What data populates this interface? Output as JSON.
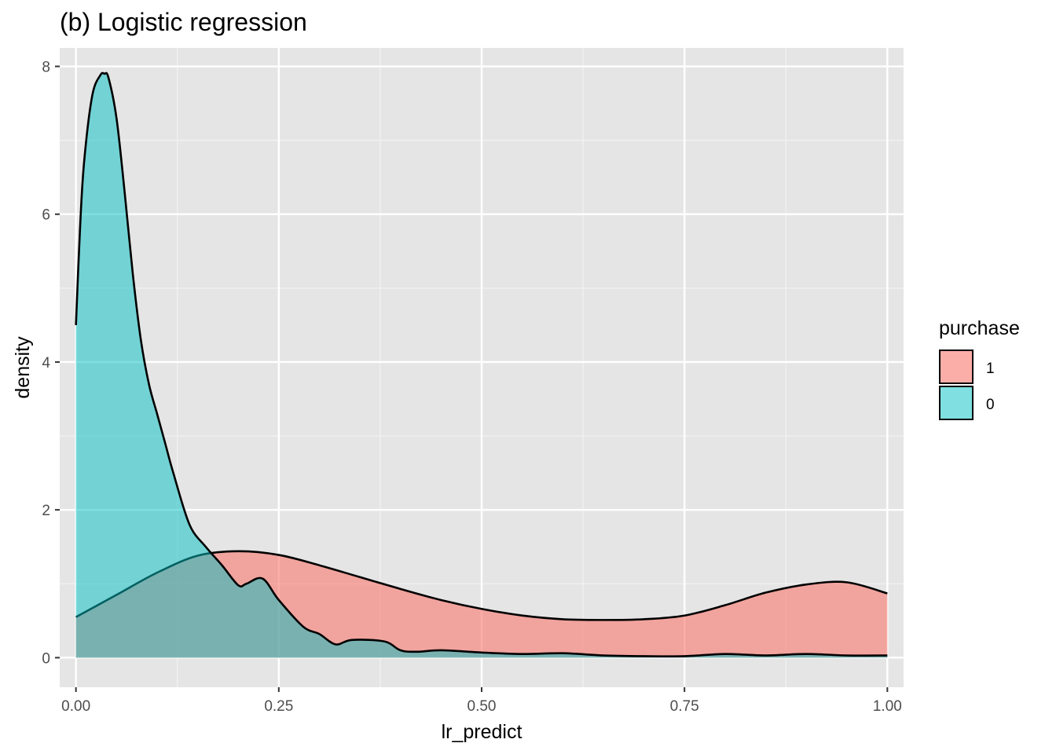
{
  "chart_data": {
    "type": "area",
    "subtype": "density",
    "title": "(b) Logistic regression",
    "xlabel": "lr_predict",
    "ylabel": "density",
    "xlim": [
      -0.02,
      1.02
    ],
    "ylim": [
      -0.4,
      8.25
    ],
    "x_ticks": [
      "0.00",
      "0.25",
      "0.50",
      "0.75",
      "1.00"
    ],
    "x_tick_values": [
      0,
      0.25,
      0.5,
      0.75,
      1.0
    ],
    "y_ticks": [
      "0",
      "2",
      "4",
      "6",
      "8"
    ],
    "y_tick_values": [
      0,
      2,
      4,
      6,
      8
    ],
    "grid": true,
    "legend": {
      "title": "purchase",
      "placement": "right"
    },
    "series": [
      {
        "name": "1",
        "color": "#F8766D",
        "x": [
          0.0,
          0.05,
          0.1,
          0.15,
          0.2,
          0.25,
          0.3,
          0.35,
          0.4,
          0.45,
          0.5,
          0.55,
          0.6,
          0.65,
          0.7,
          0.75,
          0.8,
          0.85,
          0.9,
          0.95,
          1.0
        ],
        "y": [
          0.55,
          0.85,
          1.15,
          1.38,
          1.44,
          1.39,
          1.25,
          1.09,
          0.93,
          0.78,
          0.66,
          0.57,
          0.52,
          0.51,
          0.52,
          0.57,
          0.71,
          0.88,
          0.99,
          1.02,
          0.87
        ]
      },
      {
        "name": "0",
        "color": "#00BFC4",
        "x": [
          0.0,
          0.005,
          0.01,
          0.02,
          0.03,
          0.035,
          0.04,
          0.05,
          0.06,
          0.07,
          0.08,
          0.09,
          0.1,
          0.11,
          0.12,
          0.14,
          0.16,
          0.18,
          0.2,
          0.21,
          0.23,
          0.25,
          0.28,
          0.3,
          0.32,
          0.34,
          0.38,
          0.4,
          0.42,
          0.45,
          0.5,
          0.55,
          0.6,
          0.65,
          0.7,
          0.75,
          0.8,
          0.85,
          0.9,
          0.95,
          1.0
        ],
        "y": [
          4.5,
          5.8,
          6.7,
          7.6,
          7.88,
          7.9,
          7.85,
          7.3,
          6.3,
          5.2,
          4.3,
          3.7,
          3.3,
          2.9,
          2.5,
          1.8,
          1.5,
          1.25,
          0.98,
          1.0,
          1.07,
          0.78,
          0.42,
          0.32,
          0.18,
          0.24,
          0.22,
          0.1,
          0.08,
          0.1,
          0.07,
          0.05,
          0.06,
          0.03,
          0.02,
          0.02,
          0.05,
          0.03,
          0.05,
          0.03,
          0.03
        ]
      }
    ]
  }
}
